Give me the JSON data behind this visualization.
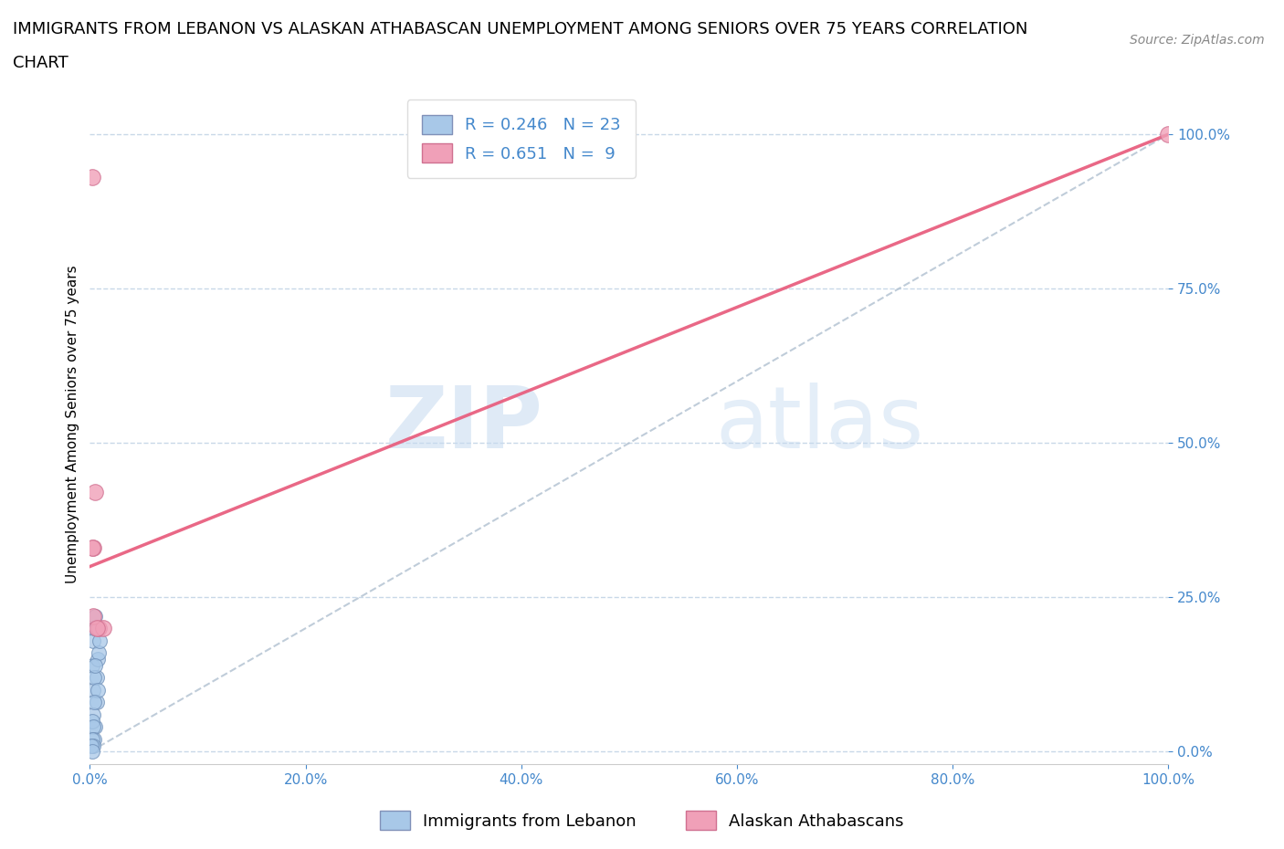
{
  "title_line1": "IMMIGRANTS FROM LEBANON VS ALASKAN ATHABASCAN UNEMPLOYMENT AMONG SENIORS OVER 75 YEARS CORRELATION",
  "title_line2": "CHART",
  "source": "Source: ZipAtlas.com",
  "ylabel": "Unemployment Among Seniors over 75 years",
  "watermark_zip": "ZIP",
  "watermark_atlas": "atlas",
  "legend_r1": "R = 0.246",
  "legend_n1": "N = 23",
  "legend_r2": "R = 0.651",
  "legend_n2": "N =  9",
  "label1": "Immigrants from Lebanon",
  "label2": "Alaskan Athabascans",
  "color_blue": "#a8c8e8",
  "color_pink": "#f0a0b8",
  "color_blue_line": "#a0b8d0",
  "color_pink_line": "#e86080",
  "blue_scatter_x": [
    0.002,
    0.003,
    0.004,
    0.005,
    0.006,
    0.007,
    0.008,
    0.009,
    0.003,
    0.004,
    0.005,
    0.006,
    0.007,
    0.003,
    0.004,
    0.005,
    0.002,
    0.003,
    0.004,
    0.002,
    0.003,
    0.001,
    0.002
  ],
  "blue_scatter_y": [
    0.14,
    0.18,
    0.2,
    0.22,
    0.12,
    0.15,
    0.16,
    0.18,
    0.1,
    0.12,
    0.14,
    0.08,
    0.1,
    0.06,
    0.08,
    0.04,
    0.05,
    0.04,
    0.02,
    0.02,
    0.01,
    0.01,
    0.0
  ],
  "pink_scatter_x": [
    0.002,
    0.003,
    0.005,
    0.008,
    0.012,
    0.003,
    0.006,
    0.002,
    1.0
  ],
  "pink_scatter_y": [
    0.93,
    0.33,
    0.42,
    0.2,
    0.2,
    0.22,
    0.2,
    0.33,
    1.0
  ],
  "blue_line_x": [
    0.0,
    1.0
  ],
  "blue_line_y": [
    0.0,
    1.0
  ],
  "pink_line_x": [
    0.0,
    1.0
  ],
  "pink_line_y": [
    0.3,
    1.0
  ],
  "xlim": [
    0.0,
    1.0
  ],
  "ylim": [
    -0.02,
    1.08
  ],
  "xtick_positions": [
    0.0,
    0.2,
    0.4,
    0.6,
    0.8,
    1.0
  ],
  "xtick_labels": [
    "0.0%",
    "20.0%",
    "40.0%",
    "60.0%",
    "80.0%",
    "100.0%"
  ],
  "ytick_positions": [
    0.0,
    0.25,
    0.5,
    0.75,
    1.0
  ],
  "ytick_labels": [
    "0.0%",
    "25.0%",
    "50.0%",
    "75.0%",
    "100.0%"
  ],
  "grid_color": "#c8d8e8",
  "background_color": "#ffffff",
  "title_fontsize": 13,
  "axis_label_fontsize": 11,
  "tick_fontsize": 11,
  "tick_color": "#4488cc",
  "source_fontsize": 10,
  "legend_fontsize": 13
}
